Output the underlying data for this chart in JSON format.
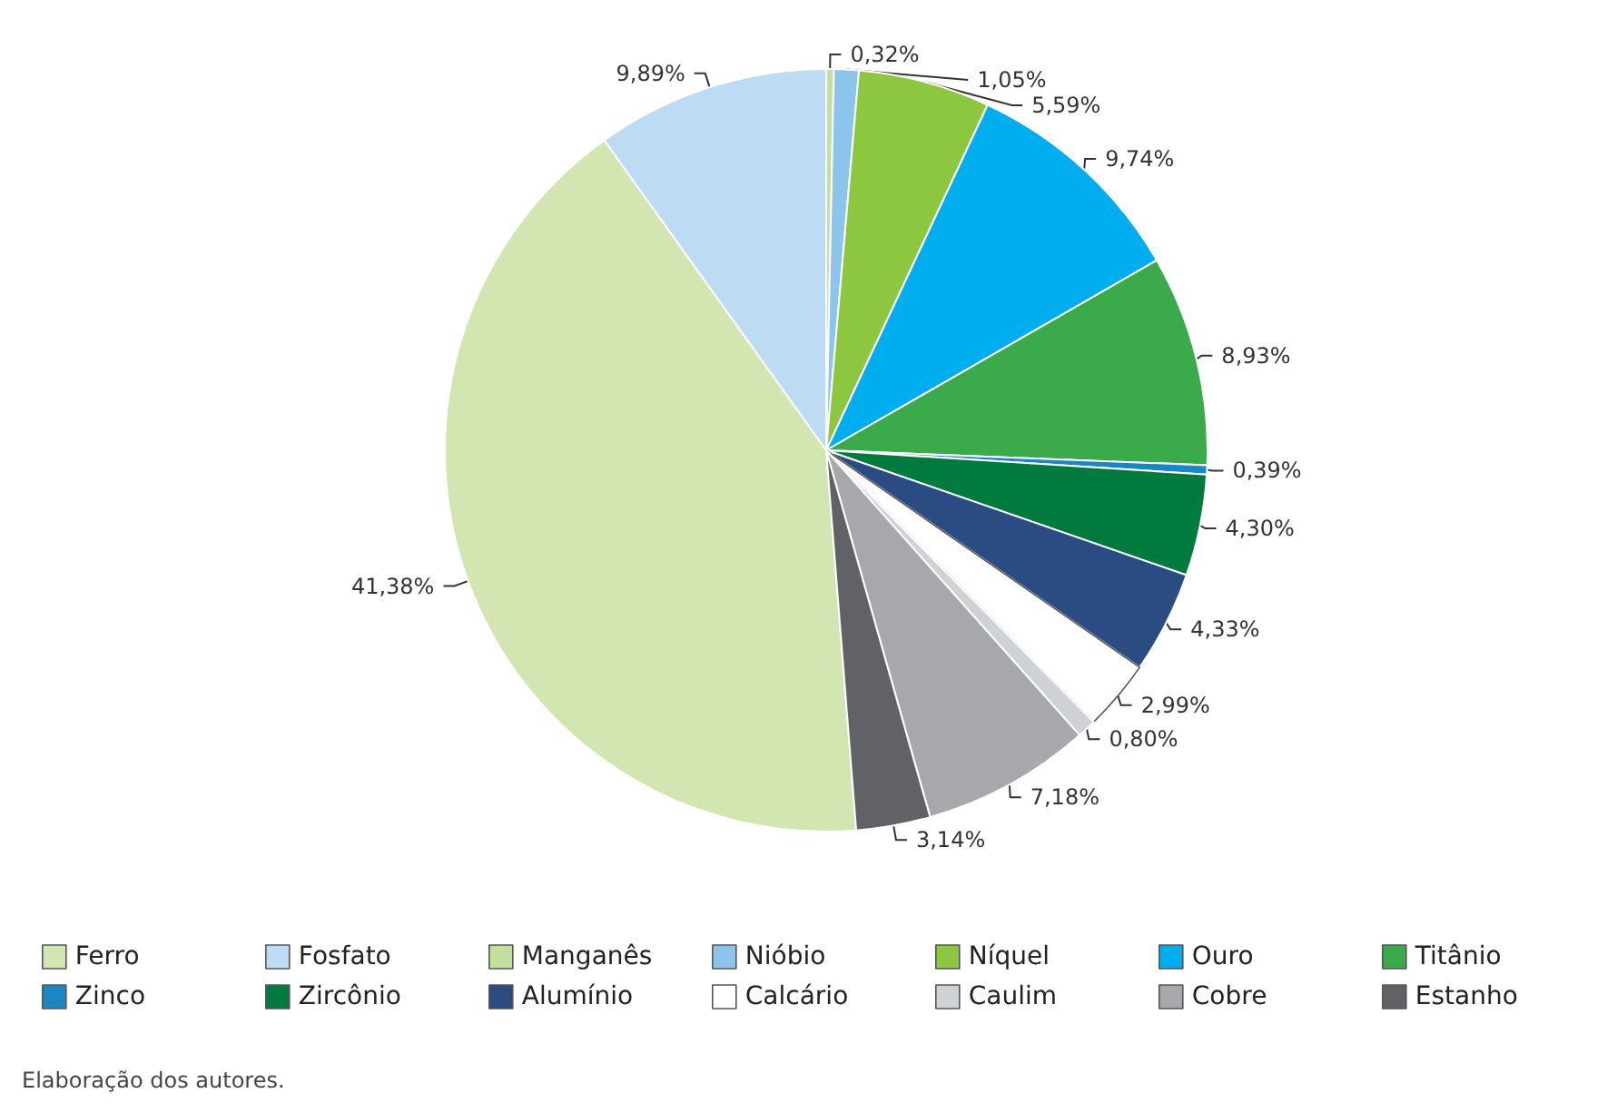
{
  "chart_data": {
    "type": "pie",
    "categories": [
      "Ferro",
      "Fosfato",
      "Manganês",
      "Nióbio",
      "Níquel",
      "Ouro",
      "Titânio",
      "Zinco",
      "Zircônio",
      "Alumínio",
      "Calcário",
      "Caulim",
      "Cobre",
      "Estanho"
    ],
    "values": [
      41.38,
      9.89,
      0.32,
      1.05,
      5.59,
      9.74,
      8.93,
      0.39,
      4.3,
      4.33,
      2.99,
      0.8,
      7.18,
      3.14
    ],
    "value_labels": [
      "41,38%",
      "9,89%",
      "0,32%",
      "1,05%",
      "5,59%",
      "9,74%",
      "8,93%",
      "0,39%",
      "4,30%",
      "4,33%",
      "2,99%",
      "0,80%",
      "7,18%",
      "3,14%"
    ],
    "colors": [
      "#d3e6b1",
      "#bddcf3",
      "#c3df9c",
      "#8cc5ec",
      "#8dc63f",
      "#00aeef",
      "#3aaa4a",
      "#1a86c4",
      "#007a3d",
      "#2b4c83",
      "#ffffff",
      "#cfd2d5",
      "#a6a8ab",
      "#606265"
    ],
    "legend": "bottom",
    "annotations": [
      "Elaboração dos autores."
    ]
  }
}
